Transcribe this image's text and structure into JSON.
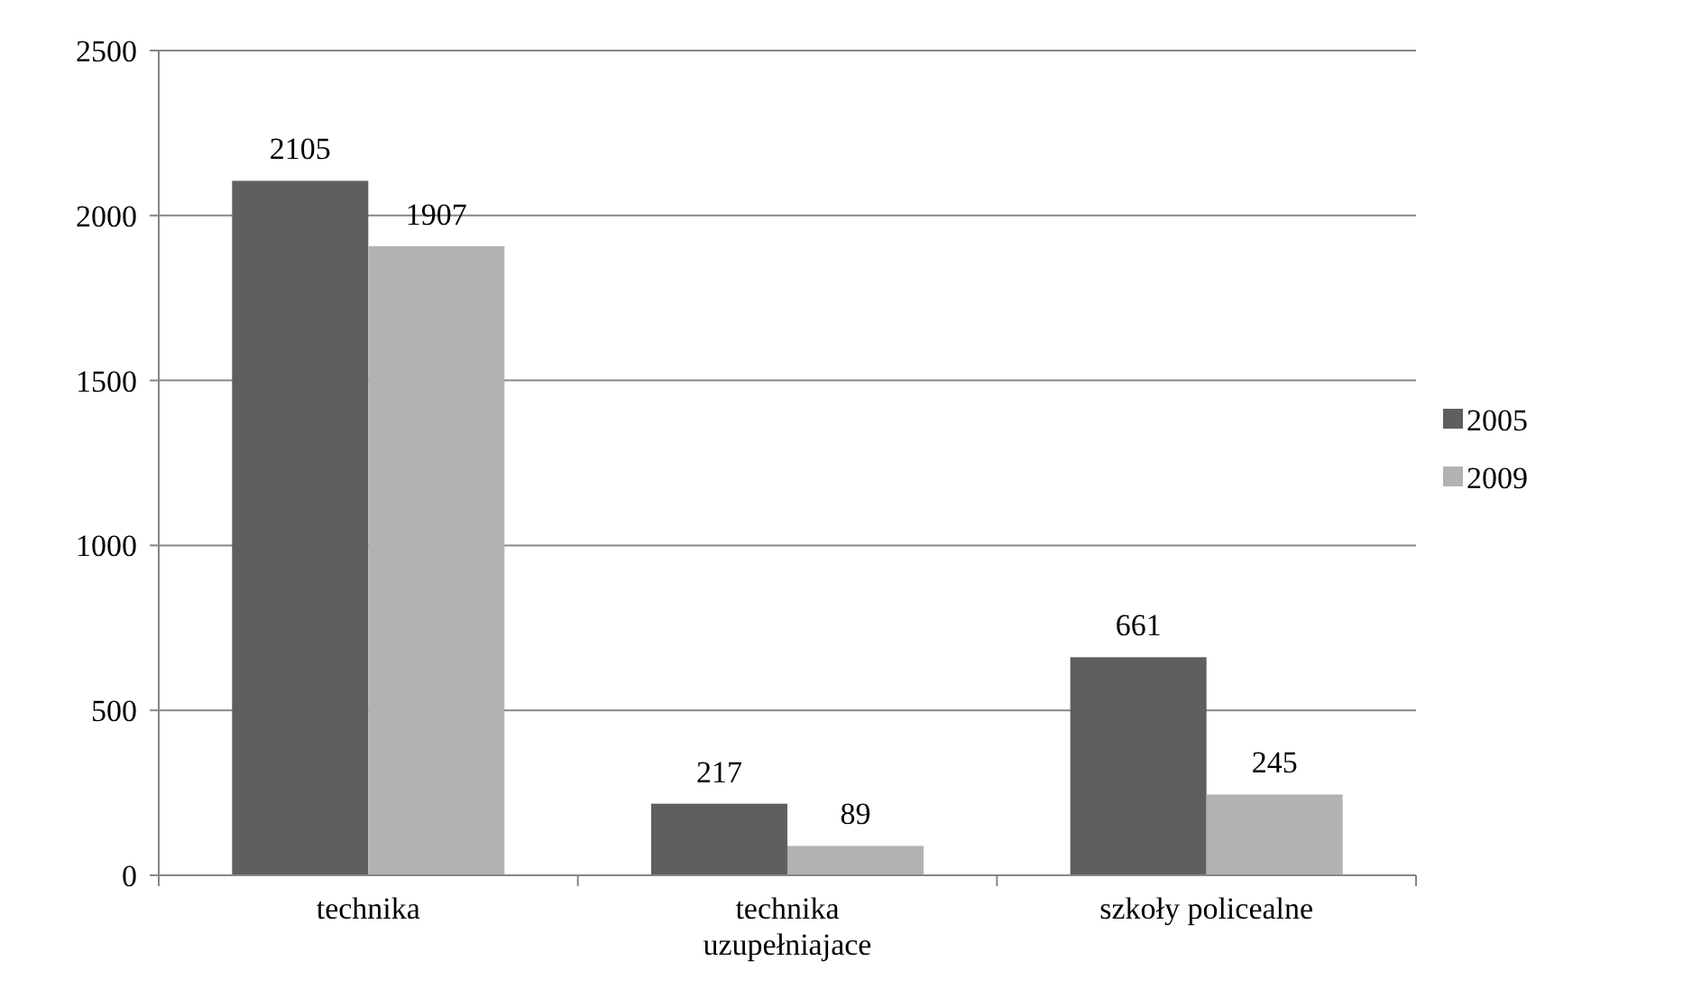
{
  "chart_data": {
    "type": "bar",
    "categories": [
      "technika",
      "technika uzupełniajace",
      "szkoły policealne"
    ],
    "series": [
      {
        "name": "2005",
        "color": "#5f5f5f",
        "values": [
          2105,
          217,
          661
        ]
      },
      {
        "name": "2009",
        "color": "#b2b2b2",
        "values": [
          1907,
          89,
          245
        ]
      }
    ],
    "ylim": [
      0,
      2500
    ],
    "yticks": [
      0,
      500,
      1000,
      1500,
      2000,
      2500
    ],
    "grid": "y",
    "legend": "right",
    "data_labels": true
  }
}
